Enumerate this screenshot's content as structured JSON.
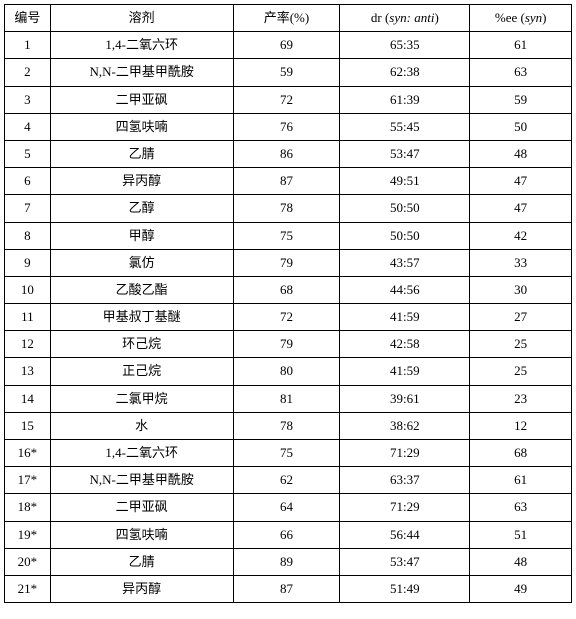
{
  "table": {
    "headers": {
      "idx": "编号",
      "solvent": "溶剂",
      "yield": "产率(%)",
      "dr_prefix": "dr (",
      "dr_italic": "syn: anti",
      "dr_suffix": ")",
      "ee_prefix": "%ee (",
      "ee_italic": "syn",
      "ee_suffix": ")"
    },
    "rows": [
      {
        "idx": "1",
        "solvent": "1,4-二氧六环",
        "yield": "69",
        "dr": "65:35",
        "ee": "61"
      },
      {
        "idx": "2",
        "solvent": "N,N-二甲基甲酰胺",
        "yield": "59",
        "dr": "62:38",
        "ee": "63"
      },
      {
        "idx": "3",
        "solvent": "二甲亚砜",
        "yield": "72",
        "dr": "61:39",
        "ee": "59"
      },
      {
        "idx": "4",
        "solvent": "四氢呋喃",
        "yield": "76",
        "dr": "55:45",
        "ee": "50"
      },
      {
        "idx": "5",
        "solvent": "乙腈",
        "yield": "86",
        "dr": "53:47",
        "ee": "48"
      },
      {
        "idx": "6",
        "solvent": "异丙醇",
        "yield": "87",
        "dr": "49:51",
        "ee": "47"
      },
      {
        "idx": "7",
        "solvent": "乙醇",
        "yield": "78",
        "dr": "50:50",
        "ee": "47"
      },
      {
        "idx": "8",
        "solvent": "甲醇",
        "yield": "75",
        "dr": "50:50",
        "ee": "42"
      },
      {
        "idx": "9",
        "solvent": "氯仿",
        "yield": "79",
        "dr": "43:57",
        "ee": "33"
      },
      {
        "idx": "10",
        "solvent": "乙酸乙酯",
        "yield": "68",
        "dr": "44:56",
        "ee": "30"
      },
      {
        "idx": "11",
        "solvent": "甲基叔丁基醚",
        "yield": "72",
        "dr": "41:59",
        "ee": "27"
      },
      {
        "idx": "12",
        "solvent": "环己烷",
        "yield": "79",
        "dr": "42:58",
        "ee": "25"
      },
      {
        "idx": "13",
        "solvent": "正己烷",
        "yield": "80",
        "dr": "41:59",
        "ee": "25"
      },
      {
        "idx": "14",
        "solvent": "二氯甲烷",
        "yield": "81",
        "dr": "39:61",
        "ee": "23"
      },
      {
        "idx": "15",
        "solvent": "水",
        "yield": "78",
        "dr": "38:62",
        "ee": "12"
      },
      {
        "idx": "16*",
        "solvent": "1,4-二氧六环",
        "yield": "75",
        "dr": "71:29",
        "ee": "68"
      },
      {
        "idx": "17*",
        "solvent": "N,N-二甲基甲酰胺",
        "yield": "62",
        "dr": "63:37",
        "ee": "61"
      },
      {
        "idx": "18*",
        "solvent": "二甲亚砜",
        "yield": "64",
        "dr": "71:29",
        "ee": "63"
      },
      {
        "idx": "19*",
        "solvent": "四氢呋喃",
        "yield": "66",
        "dr": "56:44",
        "ee": "51"
      },
      {
        "idx": "20*",
        "solvent": "乙腈",
        "yield": "89",
        "dr": "53:47",
        "ee": "48"
      },
      {
        "idx": "21*",
        "solvent": "异丙醇",
        "yield": "87",
        "dr": "51:49",
        "ee": "49"
      }
    ]
  }
}
